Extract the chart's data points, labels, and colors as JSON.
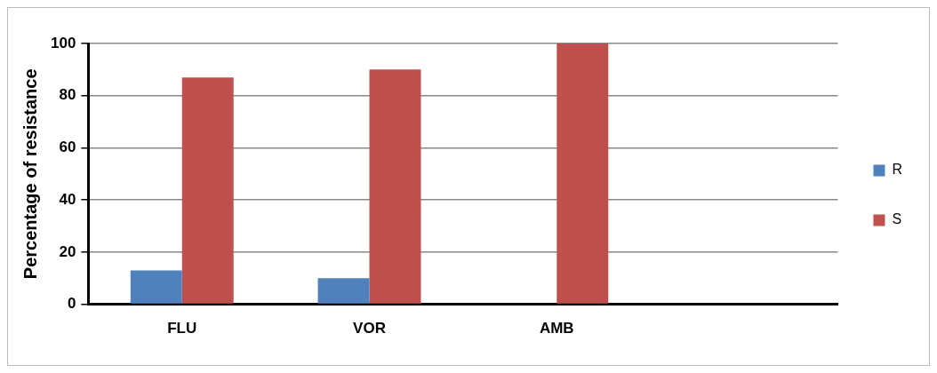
{
  "chart_data": {
    "type": "bar",
    "ylabel": "Percentage of resistance",
    "categories": [
      "FLU",
      "VOR",
      "AMB",
      null
    ],
    "series": [
      {
        "name": "R",
        "color": "#4f81bd",
        "values": [
          13,
          10,
          0,
          null
        ]
      },
      {
        "name": "S",
        "color": "#c0504d",
        "values": [
          87,
          90,
          100,
          null
        ]
      }
    ],
    "ylim": [
      0,
      100
    ],
    "yticks": [
      0,
      20,
      40,
      60,
      80,
      100
    ],
    "grid": "y",
    "legend": "right"
  }
}
